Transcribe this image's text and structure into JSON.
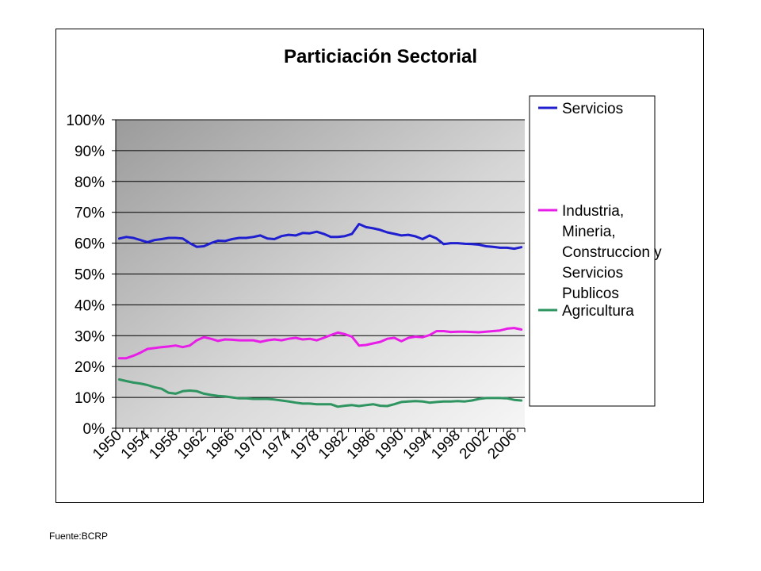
{
  "source_note": "Fuente:BCRP",
  "chart_data": {
    "type": "line",
    "title": "Particiación Sectorial",
    "xlabel": "",
    "ylabel": "",
    "ylim": [
      0,
      1
    ],
    "y_ticks": [
      "0%",
      "10%",
      "20%",
      "30%",
      "40%",
      "50%",
      "60%",
      "70%",
      "80%",
      "90%",
      "100%"
    ],
    "x_tick_labels": [
      "1950",
      "1954",
      "1958",
      "1962",
      "1966",
      "1970",
      "1974",
      "1978",
      "1982",
      "1986",
      "1990",
      "1994",
      "1998",
      "2002",
      "2006"
    ],
    "grid": "horizontal",
    "legend_position": "right",
    "x": [
      1950,
      1951,
      1952,
      1953,
      1954,
      1955,
      1956,
      1957,
      1958,
      1959,
      1960,
      1961,
      1962,
      1963,
      1964,
      1965,
      1966,
      1967,
      1968,
      1969,
      1970,
      1971,
      1972,
      1973,
      1974,
      1975,
      1976,
      1977,
      1978,
      1979,
      1980,
      1981,
      1982,
      1983,
      1984,
      1985,
      1986,
      1987,
      1988,
      1989,
      1990,
      1991,
      1992,
      1993,
      1994,
      1995,
      1996,
      1997,
      1998,
      1999,
      2000,
      2001,
      2002,
      2003,
      2004,
      2005,
      2006,
      2007
    ],
    "series": [
      {
        "name": "Servicios",
        "legend_lines": [
          "Servicios"
        ],
        "color": "#1f1fd0",
        "values": [
          0.615,
          0.62,
          0.617,
          0.61,
          0.603,
          0.61,
          0.613,
          0.617,
          0.617,
          0.615,
          0.6,
          0.588,
          0.59,
          0.6,
          0.608,
          0.607,
          0.613,
          0.617,
          0.617,
          0.62,
          0.625,
          0.615,
          0.613,
          0.623,
          0.627,
          0.625,
          0.633,
          0.632,
          0.637,
          0.63,
          0.62,
          0.62,
          0.623,
          0.63,
          0.662,
          0.652,
          0.648,
          0.643,
          0.635,
          0.63,
          0.625,
          0.627,
          0.622,
          0.613,
          0.625,
          0.615,
          0.597,
          0.6,
          0.6,
          0.598,
          0.597,
          0.595,
          0.59,
          0.588,
          0.585,
          0.585,
          0.582,
          0.587
        ]
      },
      {
        "name": "Industria, Mineria, Construccion y Servicios Publicos",
        "legend_lines": [
          "Industria,",
          "Mineria,",
          "Construccion y",
          "Servicios",
          "Publicos"
        ],
        "color": "#e81ee8",
        "values": [
          0.227,
          0.227,
          0.235,
          0.245,
          0.257,
          0.26,
          0.263,
          0.265,
          0.268,
          0.263,
          0.268,
          0.285,
          0.295,
          0.29,
          0.283,
          0.288,
          0.287,
          0.285,
          0.285,
          0.285,
          0.28,
          0.285,
          0.288,
          0.285,
          0.29,
          0.293,
          0.288,
          0.29,
          0.285,
          0.293,
          0.302,
          0.31,
          0.305,
          0.297,
          0.268,
          0.27,
          0.275,
          0.28,
          0.29,
          0.293,
          0.282,
          0.293,
          0.297,
          0.295,
          0.302,
          0.315,
          0.315,
          0.312,
          0.313,
          0.313,
          0.312,
          0.311,
          0.313,
          0.315,
          0.317,
          0.323,
          0.325,
          0.32
        ]
      },
      {
        "name": "Agricultura",
        "legend_lines": [
          "Agricultura"
        ],
        "color": "#2e9460",
        "values": [
          0.158,
          0.153,
          0.148,
          0.145,
          0.14,
          0.133,
          0.128,
          0.115,
          0.112,
          0.12,
          0.122,
          0.12,
          0.112,
          0.108,
          0.105,
          0.103,
          0.1,
          0.097,
          0.097,
          0.095,
          0.095,
          0.095,
          0.093,
          0.09,
          0.087,
          0.083,
          0.08,
          0.08,
          0.078,
          0.078,
          0.078,
          0.07,
          0.073,
          0.075,
          0.072,
          0.075,
          0.078,
          0.073,
          0.072,
          0.078,
          0.085,
          0.087,
          0.088,
          0.087,
          0.083,
          0.085,
          0.087,
          0.087,
          0.088,
          0.087,
          0.09,
          0.095,
          0.098,
          0.098,
          0.098,
          0.097,
          0.092,
          0.09
        ]
      }
    ]
  }
}
